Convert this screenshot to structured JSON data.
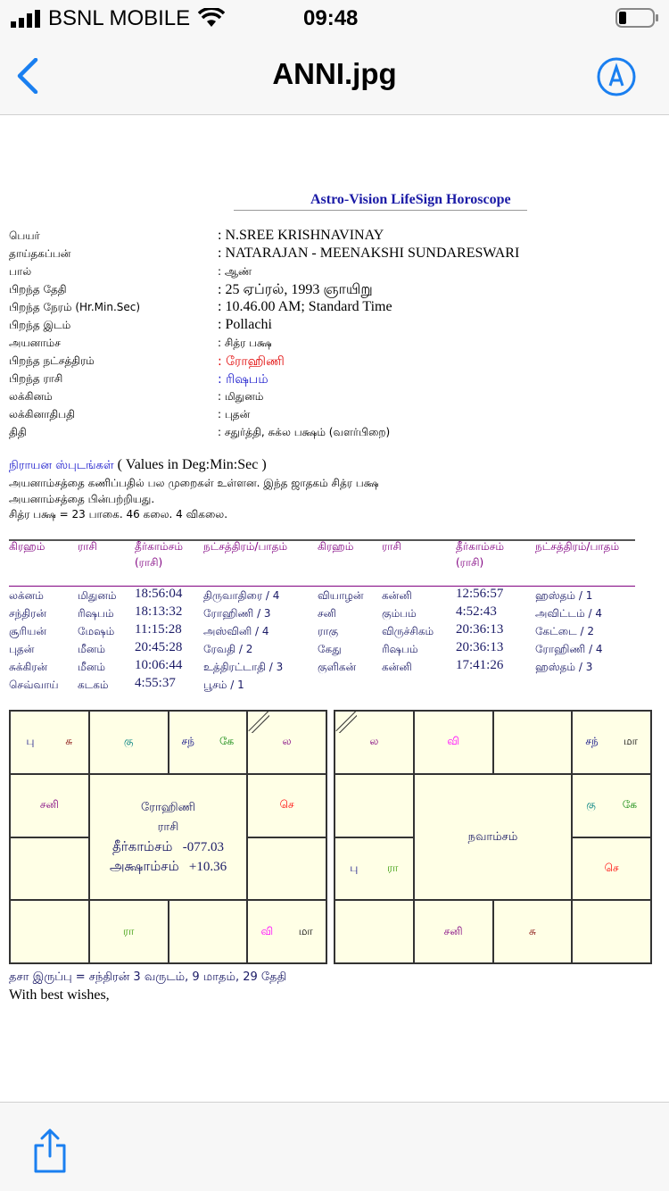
{
  "status_bar": {
    "carrier": "BSNL MOBILE",
    "time": "09:48"
  },
  "nav": {
    "title": "ANNI.jpg",
    "back_icon": "chevron-left-icon",
    "markup_icon": "markup-pen-icon"
  },
  "toolbar": {
    "share_icon": "share-icon"
  },
  "document": {
    "brand": "Astro-Vision LifeSign Horoscope",
    "info": [
      {
        "label": "பெயர்",
        "value": ": N.SREE KRISHNAVINAY",
        "color": "#000000"
      },
      {
        "label": "தாய்தகப்பன்",
        "value": ": NATARAJAN - MEENAKSHI SUNDARESWARI",
        "color": "#000000"
      },
      {
        "label": "பால்",
        "value": ": ஆண்",
        "color": "#000000"
      },
      {
        "label": "பிறந்த தேதி",
        "value": ": 25 ஏப்ரல், 1993  ஞாயிறு",
        "color": "#000000"
      },
      {
        "label": "பிறந்த நேரம் (Hr.Min.Sec)",
        "value": ": 10.46.00 AM; Standard Time",
        "color": "#000000"
      },
      {
        "label": "பிறந்த இடம்",
        "value": ": Pollachi",
        "color": "#000000"
      },
      {
        "label": "அயனாம்ச",
        "value": ": சித்ர பக்ஷ",
        "color": "#000000"
      },
      {
        "label": "பிறந்த நட்சத்திரம்",
        "value": ": ரோஹிணி",
        "color": "#e00000"
      },
      {
        "label": "பிறந்த ராசி",
        "value": ": ரிஷபம்",
        "color": "#1a1acc"
      },
      {
        "label": "லக்கினம்",
        "value": ": மிதுனம்",
        "color": "#000000"
      },
      {
        "label": "லக்கினாதிபதி",
        "value": ": புதன்",
        "color": "#000000"
      },
      {
        "label": "திதி",
        "value": ": சதுர்த்தி, சுக்ல பக்ஷம் (வளர்பிறை)",
        "color": "#000000"
      }
    ],
    "section_title": "நிராயன ஸ்புடங்கள்",
    "section_title_suffix": "( Values in Deg:Min:Sec )",
    "note_line1": "அயனாம்சத்தை  கணிப்பதில்  பல  முறைகள்  உள்ளன.  இந்த  ஜாதகம்  சித்ர  பக்ஷ",
    "note_line2": "அயனாம்சத்தை பின்பற்றியது.",
    "note_line3": "சித்ர பக்ஷ =  23 பாகை. 46 கலை. 4 விகலை.",
    "table": {
      "headers": [
        "கிரஹம்",
        "ராசி",
        "தீர்காம்சம்",
        "நட்சத்திரம்/பாதம்",
        "கிரஹம்",
        "ராசி",
        "தீர்காம்சம்",
        "நட்சத்திரம்/பாதம்"
      ],
      "subheaders": [
        "",
        "",
        "(ராசி)",
        "",
        "",
        "",
        "(ராசி)",
        ""
      ],
      "rows": [
        [
          "லக்னம்",
          "மிதுனம்",
          "18:56:04",
          "திருவாதிரை / 4",
          "வியாழன்",
          "கன்னி",
          "12:56:57",
          "ஹஸ்தம் / 1"
        ],
        [
          "சந்திரன்",
          "ரிஷபம்",
          "18:13:32",
          "ரோஹிணி / 3",
          "சனி",
          "கும்பம்",
          "4:52:43",
          "அவிட்டம் / 4"
        ],
        [
          "சூரியன்",
          "மேஷம்",
          "11:15:28",
          "அஸ்வினி / 4",
          "ராகு",
          "விருச்சிகம்",
          "20:36:13",
          "கேட்டை / 2"
        ],
        [
          "புதன்",
          "மீனம்",
          "20:45:28",
          "ரேவதி / 2",
          "கேது",
          "ரிஷபம்",
          "20:36:13",
          "ரோஹிணி / 4"
        ],
        [
          "சுக்கிரன்",
          "மீனம்",
          "10:06:44",
          "உத்திரட்டாதி / 3",
          "குளிகன்",
          "கன்னி",
          "17:41:26",
          "ஹஸ்தம் / 3"
        ],
        [
          "செவ்வாய்",
          "கடகம்",
          "4:55:37",
          "பூசம் / 1",
          "",
          "",
          "",
          ""
        ]
      ]
    },
    "rasi_chart": {
      "center": [
        "ரோஹிணி",
        "ராசி",
        "தீர்காம்சம்   -077.03",
        "அக்ஷாம்சம்   +10.36"
      ],
      "cells": [
        [
          {
            "t": "பு",
            "c": "#000080"
          },
          {
            "t": "சு",
            "c": "#800000"
          }
        ],
        [
          {
            "t": "கு",
            "c": "#008080"
          }
        ],
        [
          {
            "t": "சந்",
            "c": "#000080"
          },
          {
            "t": "கே",
            "c": "#008000"
          }
        ],
        [
          {
            "t": "ல",
            "c": "#800080"
          }
        ],
        [
          {
            "t": "சனி",
            "c": "#800080"
          }
        ],
        [
          {
            "t": "செ",
            "c": "#ff0000"
          }
        ],
        [],
        [],
        [],
        [
          {
            "t": "ரா",
            "c": "#339900"
          }
        ],
        [],
        [
          {
            "t": "வி",
            "c": "#ff00ff"
          },
          {
            "t": "மா",
            "c": "#000000"
          }
        ]
      ]
    },
    "navamsa_chart": {
      "center": [
        "நவாம்சம்"
      ],
      "cells": [
        [
          {
            "t": "ல",
            "c": "#800080"
          }
        ],
        [
          {
            "t": "வி",
            "c": "#ff00ff"
          }
        ],
        [],
        [
          {
            "t": "சந்",
            "c": "#000080"
          },
          {
            "t": "மா",
            "c": "#000000"
          }
        ],
        [],
        [
          {
            "t": "கு",
            "c": "#008080"
          },
          {
            "t": "கே",
            "c": "#008000"
          }
        ],
        [
          {
            "t": "பு",
            "c": "#000080"
          },
          {
            "t": "ரா",
            "c": "#339900"
          }
        ],
        [
          {
            "t": "செ",
            "c": "#ff0000"
          }
        ],
        [],
        [
          {
            "t": "சனி",
            "c": "#800080"
          }
        ],
        [
          {
            "t": "சு",
            "c": "#800000"
          }
        ],
        []
      ]
    },
    "dasa": "தசா இருப்பு = சந்திரன் 3 வருடம், 9 மாதம், 29 தேதி",
    "closing": "With best wishes,"
  }
}
